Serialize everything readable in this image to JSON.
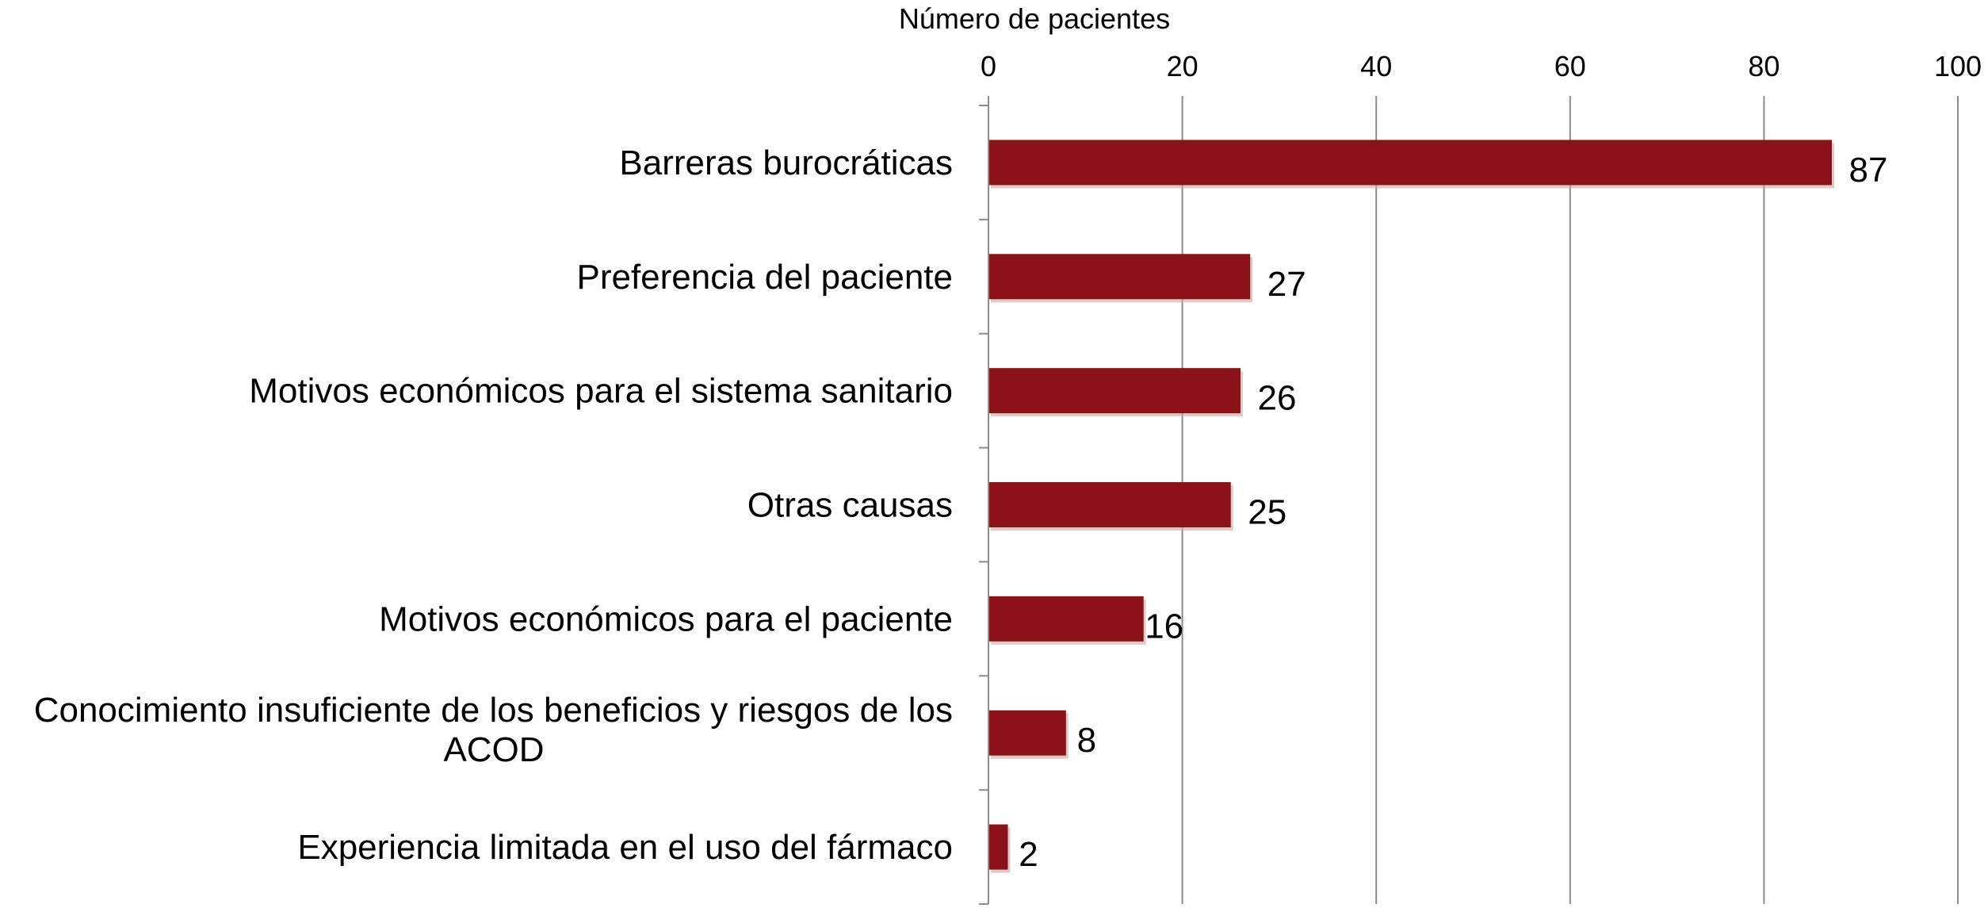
{
  "chart_data": {
    "type": "bar",
    "orientation": "horizontal",
    "xlabel": "Número de pacientes",
    "ylabel": "",
    "xlim": [
      0,
      100
    ],
    "xticks": [
      0,
      20,
      40,
      60,
      80,
      100
    ],
    "x_axis_position": "top",
    "grid": true,
    "legend": "none",
    "bar_color": "#8b1218",
    "categories": [
      [
        "Barreras burocráticas"
      ],
      [
        "Preferencia del paciente"
      ],
      [
        "Motivos económicos para el sistema sanitario"
      ],
      [
        "Otras causas"
      ],
      [
        "Motivos económicos para el paciente"
      ],
      [
        "Conocimiento insuficiente de los beneficios y riesgos de los",
        "ACOD"
      ],
      [
        "Experiencia limitada en el uso del fármaco"
      ]
    ],
    "values": [
      87,
      27,
      26,
      25,
      16,
      8,
      2
    ],
    "data_labels": [
      "87",
      "27",
      "26",
      "25",
      "16",
      "8",
      "2"
    ]
  }
}
